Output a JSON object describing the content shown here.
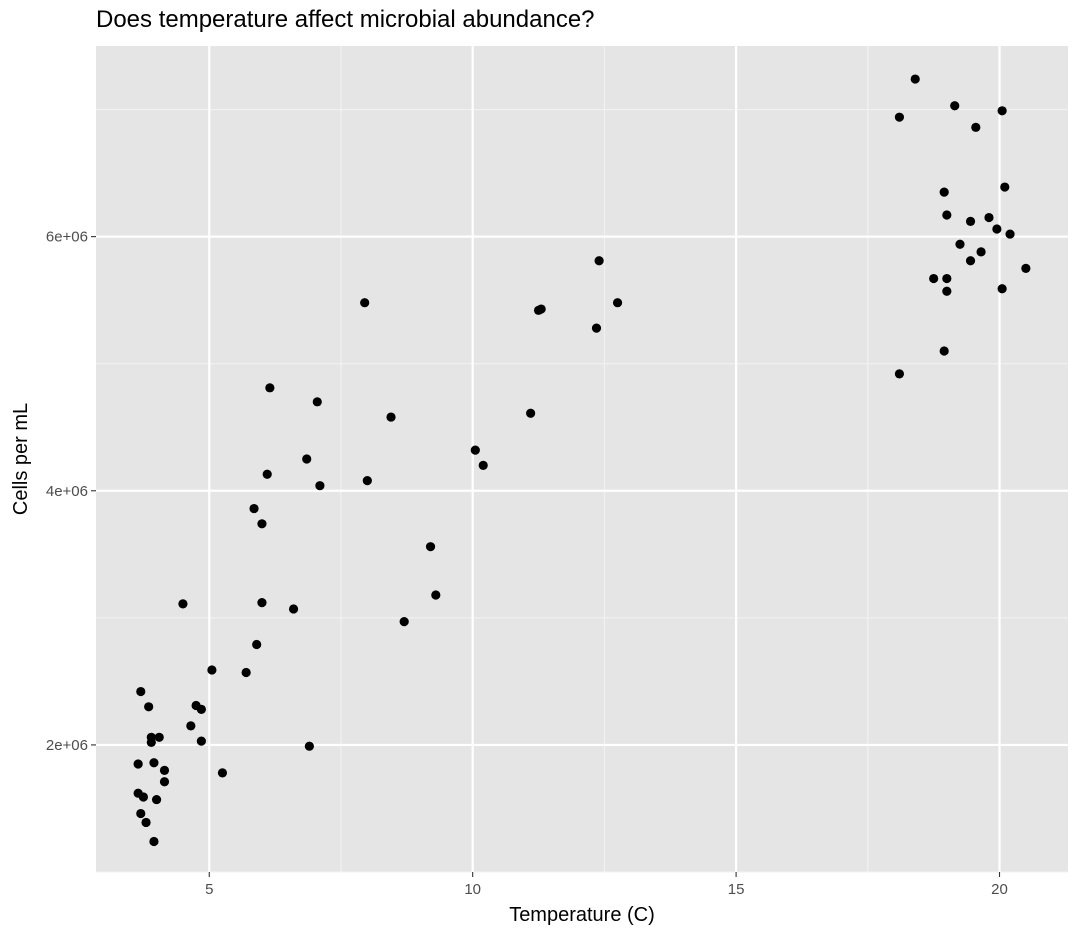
{
  "chart_data": {
    "type": "scatter",
    "title": "Does temperature affect microbial abundance?",
    "xlabel": "Temperature (C)",
    "ylabel": "Cells per mL",
    "xlim": [
      2.85,
      21.3
    ],
    "ylim": [
      1000000,
      7500000
    ],
    "x_ticks": [
      {
        "value": 5,
        "label": "5"
      },
      {
        "value": 10,
        "label": "10"
      },
      {
        "value": 15,
        "label": "15"
      },
      {
        "value": 20,
        "label": "20"
      }
    ],
    "y_ticks": [
      {
        "value": 2000000,
        "label": "2e+06"
      },
      {
        "value": 4000000,
        "label": "4e+06"
      },
      {
        "value": 6000000,
        "label": "6e+06"
      }
    ],
    "grid": true,
    "background": "#e5e5e5",
    "point_color": "#000000",
    "points": [
      [
        3.65,
        1850000
      ],
      [
        3.65,
        1620000
      ],
      [
        3.7,
        2420000
      ],
      [
        3.7,
        1460000
      ],
      [
        3.75,
        1590000
      ],
      [
        3.8,
        1390000
      ],
      [
        3.85,
        2300000
      ],
      [
        3.9,
        2020000
      ],
      [
        3.9,
        2060000
      ],
      [
        3.95,
        1240000
      ],
      [
        3.95,
        1860000
      ],
      [
        4.0,
        1570000
      ],
      [
        4.05,
        2060000
      ],
      [
        4.15,
        1800000
      ],
      [
        4.15,
        1710000
      ],
      [
        4.5,
        3110000
      ],
      [
        4.65,
        2150000
      ],
      [
        4.75,
        2310000
      ],
      [
        4.85,
        2280000
      ],
      [
        4.85,
        2030000
      ],
      [
        5.05,
        2590000
      ],
      [
        5.25,
        1780000
      ],
      [
        5.7,
        2570000
      ],
      [
        5.85,
        3860000
      ],
      [
        5.9,
        2790000
      ],
      [
        6.0,
        3740000
      ],
      [
        6.0,
        3120000
      ],
      [
        6.1,
        4130000
      ],
      [
        6.15,
        4810000
      ],
      [
        6.6,
        3070000
      ],
      [
        6.85,
        4250000
      ],
      [
        6.9,
        1990000
      ],
      [
        7.05,
        4700000
      ],
      [
        7.1,
        4040000
      ],
      [
        7.95,
        5480000
      ],
      [
        8.0,
        4080000
      ],
      [
        8.45,
        4580000
      ],
      [
        8.7,
        2970000
      ],
      [
        9.2,
        3560000
      ],
      [
        9.3,
        3180000
      ],
      [
        10.05,
        4320000
      ],
      [
        10.2,
        4200000
      ],
      [
        11.1,
        4610000
      ],
      [
        11.25,
        5420000
      ],
      [
        11.3,
        5430000
      ],
      [
        12.35,
        5280000
      ],
      [
        12.4,
        5810000
      ],
      [
        12.75,
        5480000
      ],
      [
        18.1,
        4920000
      ],
      [
        18.1,
        6940000
      ],
      [
        18.4,
        7240000
      ],
      [
        18.75,
        5670000
      ],
      [
        18.95,
        5100000
      ],
      [
        18.95,
        6350000
      ],
      [
        19.0,
        5670000
      ],
      [
        19.0,
        5570000
      ],
      [
        19.0,
        6170000
      ],
      [
        19.15,
        7030000
      ],
      [
        19.25,
        5940000
      ],
      [
        19.45,
        5810000
      ],
      [
        19.45,
        6120000
      ],
      [
        19.55,
        6860000
      ],
      [
        19.65,
        5880000
      ],
      [
        19.8,
        6150000
      ],
      [
        19.95,
        6060000
      ],
      [
        20.05,
        6990000
      ],
      [
        20.05,
        5590000
      ],
      [
        20.1,
        6390000
      ],
      [
        20.2,
        6020000
      ],
      [
        20.5,
        5750000
      ]
    ]
  }
}
